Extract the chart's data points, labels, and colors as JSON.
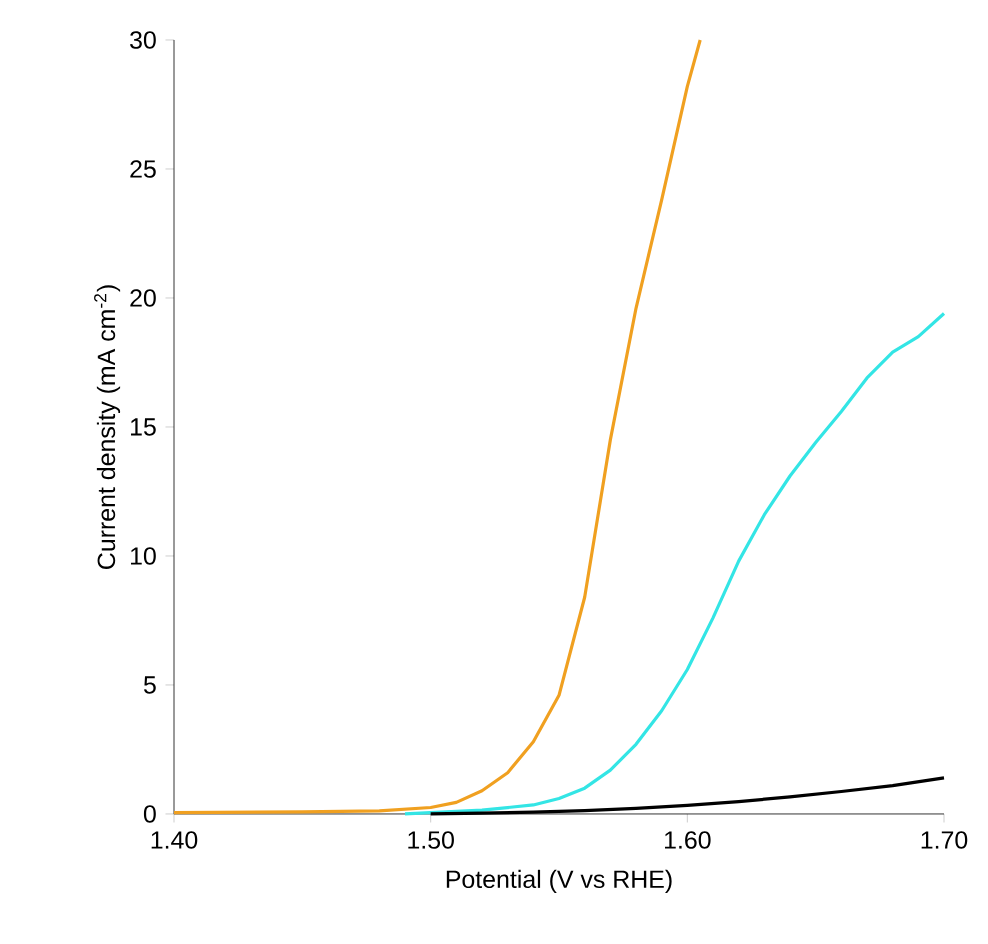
{
  "chart_data": {
    "type": "line",
    "xlabel": "Potential (V vs RHE)",
    "ylabel": "Current density (mA cm$^{-2}$)",
    "xlim": [
      1.4,
      1.7
    ],
    "ylim": [
      0,
      30
    ],
    "xticks": [
      {
        "value": 1.4,
        "label": "1.40"
      },
      {
        "value": 1.5,
        "label": "1.50"
      },
      {
        "value": 1.6,
        "label": "1.60"
      },
      {
        "value": 1.7,
        "label": "1.70"
      }
    ],
    "yticks": [
      0,
      5,
      10,
      15,
      20,
      25,
      30
    ],
    "grid": false,
    "marker": "none",
    "line_style": "solid",
    "series": [
      {
        "color": "#f0a020",
        "x": [
          1.4,
          1.45,
          1.48,
          1.5,
          1.51,
          1.52,
          1.53,
          1.54,
          1.55,
          1.56,
          1.57,
          1.58,
          1.59,
          1.6,
          1.605
        ],
        "values": [
          0.05,
          0.08,
          0.12,
          0.25,
          0.45,
          0.9,
          1.6,
          2.8,
          4.6,
          8.4,
          14.5,
          19.6,
          23.8,
          28.2,
          30
        ]
      },
      {
        "color": "#33e5e5",
        "x": [
          1.49,
          1.5,
          1.52,
          1.54,
          1.55,
          1.56,
          1.57,
          1.58,
          1.59,
          1.6,
          1.61,
          1.62,
          1.63,
          1.64,
          1.65,
          1.66,
          1.67,
          1.68,
          1.69,
          1.7
        ],
        "values": [
          0.0,
          0.05,
          0.15,
          0.35,
          0.6,
          1.0,
          1.7,
          2.7,
          4.0,
          5.6,
          7.6,
          9.8,
          11.6,
          13.1,
          14.4,
          15.6,
          16.9,
          17.9,
          18.5,
          19.4
        ]
      },
      {
        "color": "#000000",
        "x": [
          1.5,
          1.52,
          1.54,
          1.56,
          1.58,
          1.6,
          1.62,
          1.64,
          1.66,
          1.68,
          1.7
        ],
        "values": [
          0.0,
          0.03,
          0.07,
          0.13,
          0.22,
          0.33,
          0.48,
          0.66,
          0.87,
          1.1,
          1.4
        ]
      }
    ]
  }
}
